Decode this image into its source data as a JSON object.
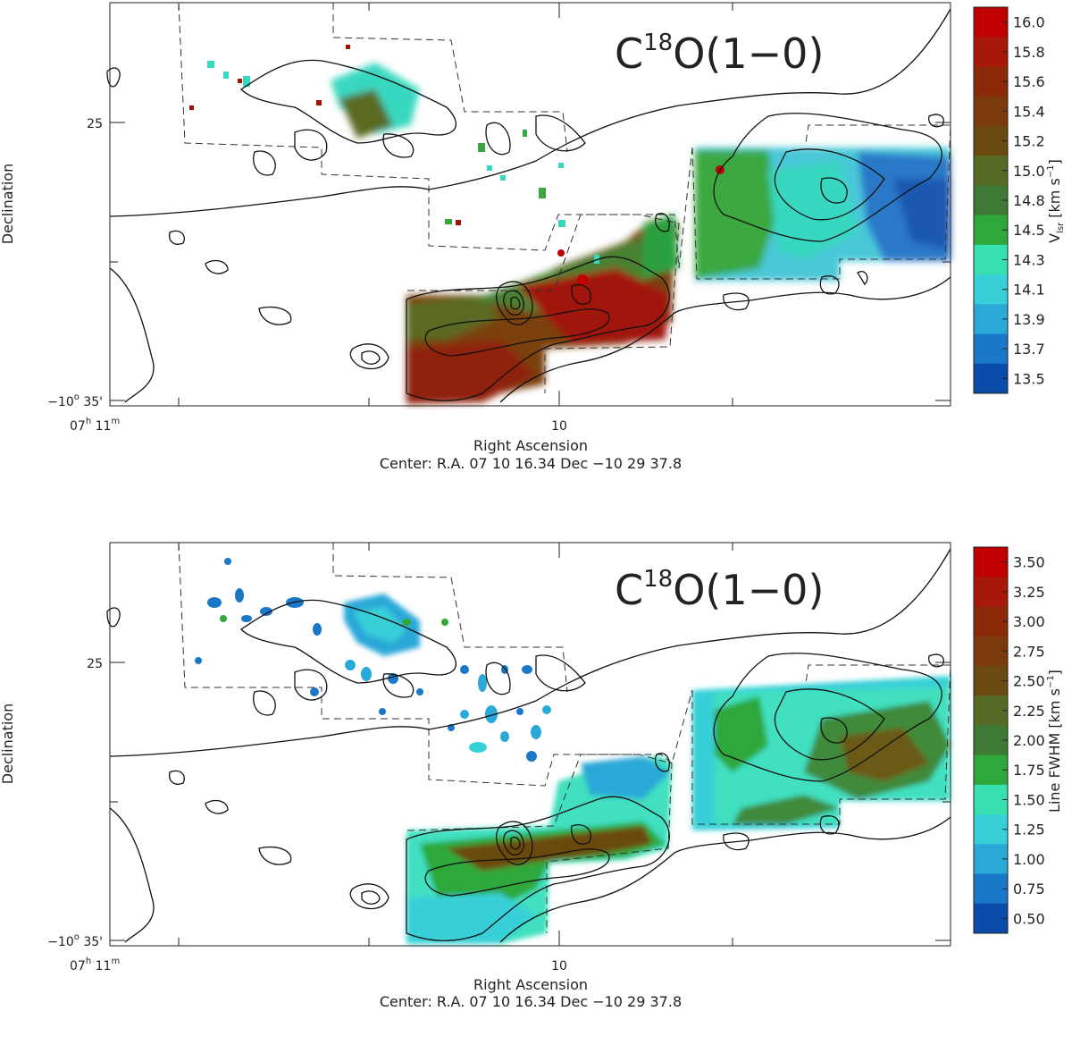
{
  "chart_data": [
    {
      "type": "heatmap",
      "title": "C18O(1-0)",
      "title_main": "C",
      "title_sup": "18",
      "title_rest": "O(1−0)",
      "xlabel": "Right Ascension",
      "ylabel": "Declination",
      "center_label": "Center:  R.A. 07 10 16.34     Dec  −10 29 37.8",
      "x_ticks": [
        {
          "label_main": "07",
          "label_sup1": "h",
          "label_mid": " 11",
          "label_sup2": "m"
        },
        {
          "label_main": "10"
        }
      ],
      "y_ticks": [
        {
          "label_main": "25"
        },
        {
          "label_main": "−10",
          "label_sup1": "o",
          "label_mid": " 35'"
        }
      ],
      "colorbar": {
        "label_main": "V",
        "label_sub": "lsr",
        "label_rest": " [km s",
        "label_sup": "−1",
        "label_end": "]",
        "ticks": [
          "16.0",
          "15.8",
          "15.6",
          "15.4",
          "15.2",
          "15.0",
          "14.8",
          "14.5",
          "14.3",
          "14.1",
          "13.9",
          "13.7",
          "13.5"
        ],
        "colors": [
          "#c00000",
          "#a81808",
          "#8a2a08",
          "#7a3a0c",
          "#6a4a10",
          "#556a24",
          "#3f7a34",
          "#2ea83a",
          "#38e0b0",
          "#38d0d8",
          "#2aa8d8",
          "#1a78c8",
          "#0a4aa8"
        ]
      }
    },
    {
      "type": "heatmap",
      "title": "C18O(1-0)",
      "title_main": "C",
      "title_sup": "18",
      "title_rest": "O(1−0)",
      "xlabel": "Right Ascension",
      "ylabel": "Declination",
      "center_label": "Center:  R.A. 07 10 16.34     Dec  −10 29 37.8",
      "x_ticks": [
        {
          "label_main": "07",
          "label_sup1": "h",
          "label_mid": " 11",
          "label_sup2": "m"
        },
        {
          "label_main": "10"
        }
      ],
      "y_ticks": [
        {
          "label_main": "25"
        },
        {
          "label_main": "−10",
          "label_sup1": "o",
          "label_mid": " 35'"
        }
      ],
      "colorbar": {
        "label_main": "Line FWHM [km s",
        "label_sup": "−1",
        "label_end": "]",
        "ticks": [
          "3.50",
          "3.25",
          "3.00",
          "2.75",
          "2.50",
          "2.25",
          "2.00",
          "1.75",
          "1.50",
          "1.25",
          "1.00",
          "0.75",
          "0.50"
        ],
        "colors": [
          "#c00000",
          "#a81808",
          "#8a2a08",
          "#7a3a0c",
          "#6a4a10",
          "#556a24",
          "#3f7a34",
          "#2ea83a",
          "#38e0b0",
          "#38d0d8",
          "#2aa8d8",
          "#1a78c8",
          "#0a4aa8"
        ]
      }
    }
  ]
}
